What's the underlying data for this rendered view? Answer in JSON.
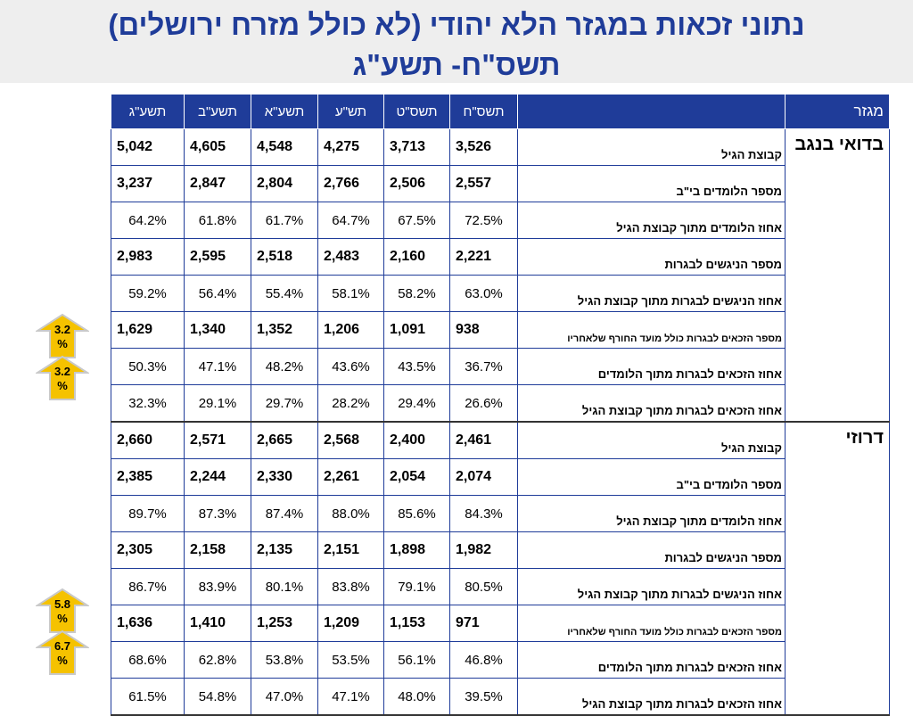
{
  "title": {
    "line1": "נתוני זכאות במגזר הלא יהודי (לא כולל מזרח ירושלים)",
    "line2": "תשס\"ח- תשע\"ג"
  },
  "table": {
    "sector_header": "מגזר",
    "years": [
      "תשס\"ח",
      "תשס\"ט",
      "תש\"ע",
      "תשע\"א",
      "תשע\"ב",
      "תשע\"ג"
    ],
    "groups": [
      {
        "sector": "בדואי בנגב",
        "rows": [
          {
            "label": "קבוצת הגיל",
            "small": false,
            "bold": true,
            "values": [
              "3,526",
              "3,713",
              "4,275",
              "4,548",
              "4,605",
              "5,042"
            ]
          },
          {
            "label": "מספר הלומדים בי\"ב",
            "small": false,
            "bold": true,
            "values": [
              "2,557",
              "2,506",
              "2,766",
              "2,804",
              "2,847",
              "3,237"
            ]
          },
          {
            "label": "אחוז הלומדים מתוך קבוצת הגיל",
            "small": false,
            "bold": false,
            "values": [
              "72.5%",
              "67.5%",
              "64.7%",
              "61.7%",
              "61.8%",
              "64.2%"
            ]
          },
          {
            "label": "מספר הניגשים לבגרות",
            "small": false,
            "bold": true,
            "values": [
              "2,221",
              "2,160",
              "2,483",
              "2,518",
              "2,595",
              "2,983"
            ]
          },
          {
            "label": "אחוז הניגשים לבגרות מתוך קבוצת הגיל",
            "small": false,
            "bold": false,
            "values": [
              "63.0%",
              "58.2%",
              "58.1%",
              "55.4%",
              "56.4%",
              "59.2%"
            ]
          },
          {
            "label": "מספר הזכאים לבגרות כולל מועד החורף שלאחריו",
            "small": true,
            "bold": true,
            "values": [
              "938",
              "1,091",
              "1,206",
              "1,352",
              "1,340",
              "1,629"
            ]
          },
          {
            "label": "אחוז הזכאים לבגרות מתוך הלומדים",
            "small": false,
            "bold": false,
            "values": [
              "36.7%",
              "43.5%",
              "43.6%",
              "48.2%",
              "47.1%",
              "50.3%"
            ]
          },
          {
            "label": "אחוז הזכאים לבגרות מתוך קבוצת הגיל",
            "small": false,
            "bold": false,
            "values": [
              "26.6%",
              "29.4%",
              "28.2%",
              "29.7%",
              "29.1%",
              "32.3%"
            ]
          }
        ]
      },
      {
        "sector": "דרוזי",
        "rows": [
          {
            "label": "קבוצת הגיל",
            "small": false,
            "bold": true,
            "values": [
              "2,461",
              "2,400",
              "2,568",
              "2,665",
              "2,571",
              "2,660"
            ]
          },
          {
            "label": "מספר הלומדים בי\"ב",
            "small": false,
            "bold": true,
            "values": [
              "2,074",
              "2,054",
              "2,261",
              "2,330",
              "2,244",
              "2,385"
            ]
          },
          {
            "label": "אחוז הלומדים מתוך קבוצת הגיל",
            "small": false,
            "bold": false,
            "values": [
              "84.3%",
              "85.6%",
              "88.0%",
              "87.4%",
              "87.3%",
              "89.7%"
            ]
          },
          {
            "label": "מספר הניגשים לבגרות",
            "small": false,
            "bold": true,
            "values": [
              "1,982",
              "1,898",
              "2,151",
              "2,135",
              "2,158",
              "2,305"
            ]
          },
          {
            "label": "אחוז הניגשים לבגרות מתוך קבוצת הגיל",
            "small": false,
            "bold": false,
            "values": [
              "80.5%",
              "79.1%",
              "83.8%",
              "80.1%",
              "83.9%",
              "86.7%"
            ]
          },
          {
            "label": "מספר הזכאים לבגרות כולל מועד החורף שלאחריו",
            "small": true,
            "bold": true,
            "values": [
              "971",
              "1,153",
              "1,209",
              "1,253",
              "1,410",
              "1,636"
            ]
          },
          {
            "label": "אחוז הזכאים לבגרות מתוך הלומדים",
            "small": false,
            "bold": false,
            "values": [
              "46.8%",
              "56.1%",
              "53.5%",
              "53.8%",
              "62.8%",
              "68.6%"
            ]
          },
          {
            "label": "אחוז הזכאים לבגרות מתוך קבוצת הגיל",
            "small": false,
            "bold": false,
            "values": [
              "39.5%",
              "48.0%",
              "47.1%",
              "47.0%",
              "54.8%",
              "61.5%"
            ]
          }
        ]
      }
    ]
  },
  "arrows": [
    {
      "value": "3.2",
      "unit": "%",
      "row": "bedouin-row-7"
    },
    {
      "value": "3.2",
      "unit": "%",
      "row": "bedouin-row-8"
    },
    {
      "value": "5.8",
      "unit": "%",
      "row": "druze-row-7"
    },
    {
      "value": "6.7",
      "unit": "%",
      "row": "druze-row-8"
    }
  ],
  "colors": {
    "title": "#1f3c99",
    "header_bg": "#1f3c99",
    "arrow_fill": "#f5c200",
    "arrow_stroke": "#c9c9c9"
  }
}
